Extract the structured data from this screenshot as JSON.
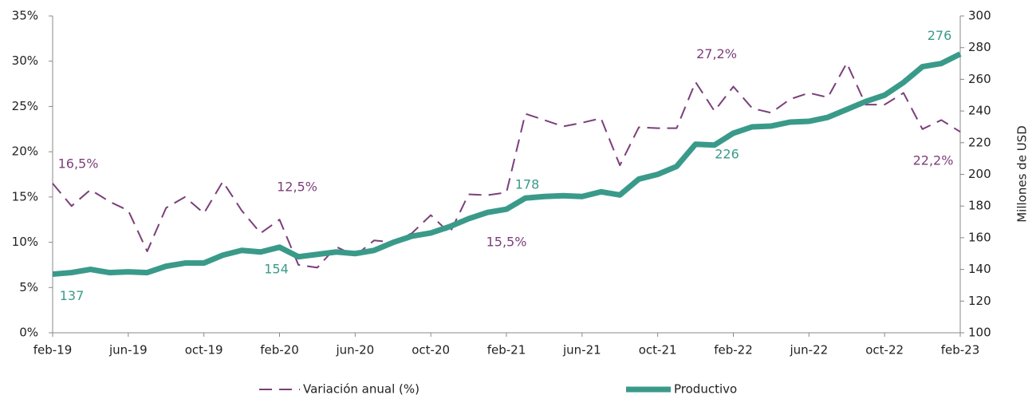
{
  "chart_data": {
    "type": "line",
    "categories": [
      "feb-19",
      null,
      null,
      null,
      "jun-19",
      null,
      null,
      null,
      "oct-19",
      null,
      null,
      null,
      "feb-20",
      null,
      null,
      null,
      "jun-20",
      null,
      null,
      null,
      "oct-20",
      null,
      null,
      null,
      "feb-21",
      null,
      null,
      null,
      "jun-21",
      null,
      null,
      null,
      "oct-21",
      null,
      null,
      null,
      "feb-22",
      null,
      null,
      null,
      "jun-22",
      null,
      null,
      null,
      "oct-22",
      null,
      null,
      null,
      "feb-23"
    ],
    "series": [
      {
        "name": "Variación anual (%)",
        "color": "#7b3f7a",
        "dashed": true,
        "axis": "y",
        "values": [
          16.5,
          14,
          15.8,
          14.5,
          13.5,
          9,
          13.8,
          15,
          13.2,
          16.7,
          13.5,
          11,
          12.5,
          7.5,
          7.2,
          9.5,
          8.5,
          10.2,
          10,
          11,
          13,
          11,
          15.3,
          15.2,
          15.5,
          24.2,
          23.5,
          22.8,
          23.2,
          23.7,
          18.5,
          22.7,
          22.6,
          22.6,
          27.7,
          24.5,
          27.2,
          24.8,
          24.3,
          25.8,
          26.5,
          26,
          29.8,
          25.2,
          25.2,
          26.5,
          22.5,
          23.5,
          22.2
        ],
        "value_labels": [
          "16,5%",
          null,
          null,
          null,
          null,
          null,
          null,
          null,
          null,
          null,
          null,
          null,
          "12,5%",
          null,
          null,
          null,
          null,
          null,
          null,
          null,
          null,
          null,
          null,
          null,
          "15,5%",
          null,
          null,
          null,
          null,
          null,
          null,
          null,
          null,
          null,
          null,
          null,
          "27,2%",
          null,
          null,
          null,
          null,
          null,
          null,
          null,
          null,
          null,
          null,
          null,
          "22,2%"
        ]
      },
      {
        "name": "Productivo",
        "color": "#3a9a8a",
        "axis": "y2",
        "values": [
          137,
          138,
          140,
          138,
          138.5,
          138,
          142,
          144,
          144,
          149,
          152,
          151,
          154,
          148,
          149.5,
          151,
          150,
          152,
          157,
          161,
          163,
          167,
          172,
          176,
          178,
          185,
          186,
          186.5,
          186,
          189,
          187,
          197,
          200,
          205,
          219,
          218.5,
          226,
          230,
          230.5,
          233,
          233.5,
          236,
          241,
          246,
          250,
          258,
          268,
          270,
          276
        ],
        "value_labels": [
          "137",
          null,
          null,
          null,
          null,
          null,
          null,
          null,
          null,
          null,
          null,
          null,
          "154",
          null,
          null,
          null,
          null,
          null,
          null,
          null,
          null,
          null,
          null,
          null,
          "178",
          null,
          null,
          null,
          null,
          null,
          null,
          null,
          null,
          null,
          null,
          null,
          "226",
          null,
          null,
          null,
          null,
          null,
          null,
          null,
          null,
          null,
          null,
          null,
          "276"
        ]
      }
    ],
    "ylim": [
      0,
      35
    ],
    "yticks": [
      {
        "value": 0,
        "label": "0%"
      },
      {
        "value": 5,
        "label": "5%"
      },
      {
        "value": 10,
        "label": "10%"
      },
      {
        "value": 15,
        "label": "15%"
      },
      {
        "value": 20,
        "label": "20%"
      },
      {
        "value": 25,
        "label": "25%"
      },
      {
        "value": 30,
        "label": "30%"
      },
      {
        "value": 35,
        "label": "35%"
      }
    ],
    "y2lim": [
      100,
      300
    ],
    "y2ticks": [
      100,
      120,
      140,
      160,
      180,
      200,
      220,
      240,
      260,
      280,
      300
    ],
    "y2label": "Millones de USD",
    "legend": "bottom"
  }
}
